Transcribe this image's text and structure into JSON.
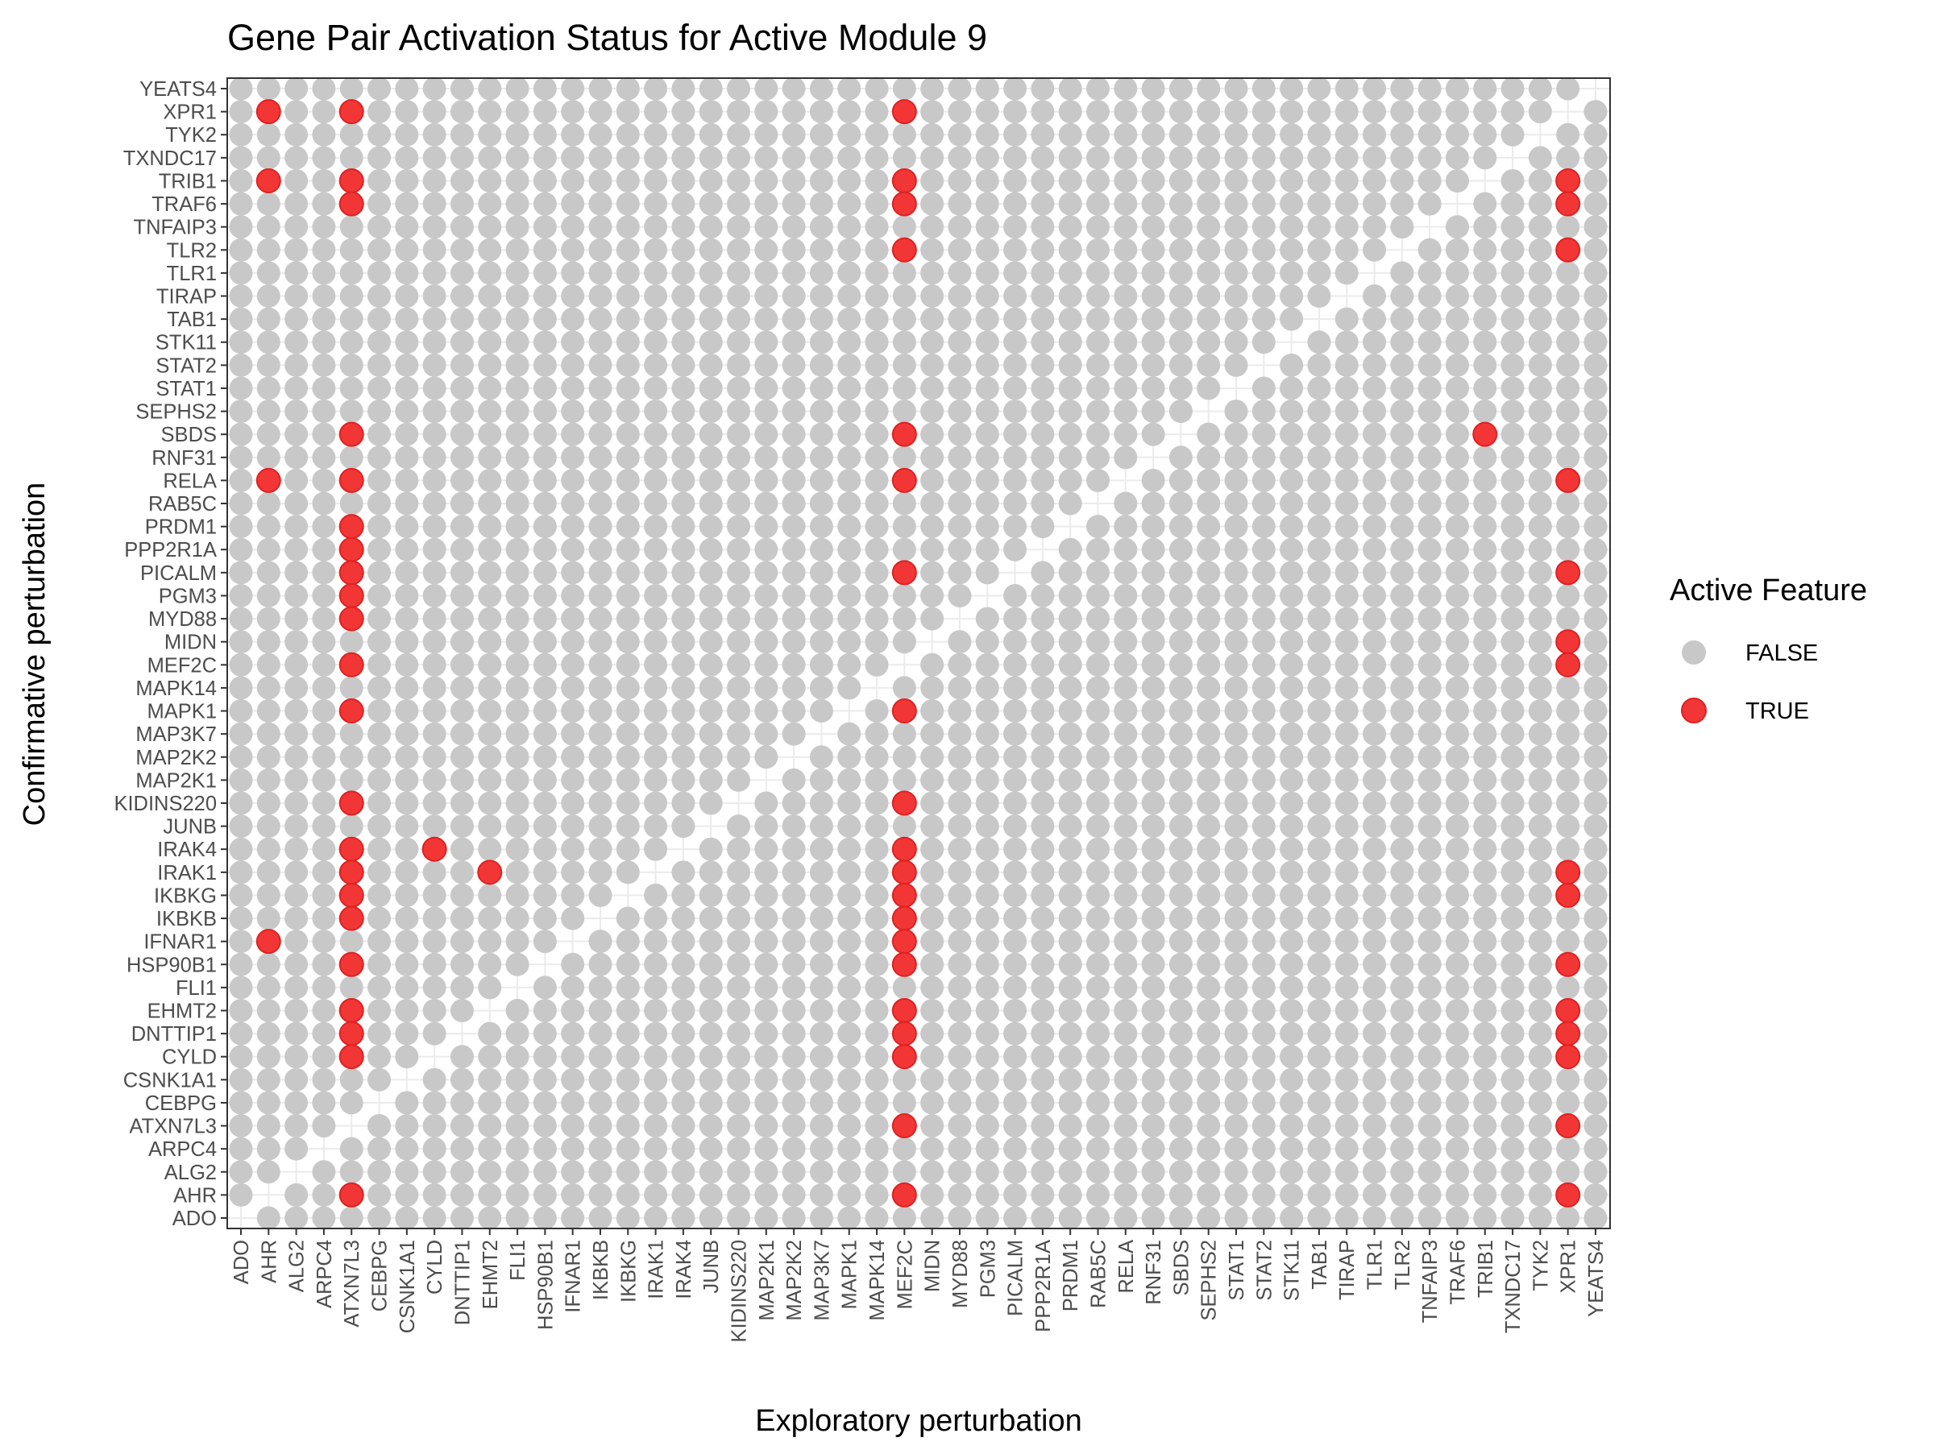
{
  "chart_data": {
    "type": "scatter",
    "title": "Gene Pair Activation Status for Active Module 9",
    "xlabel": "Exploratory perturbation",
    "ylabel": "Confirmative perturbation",
    "genes": [
      "ADO",
      "AHR",
      "ALG2",
      "ARPC4",
      "ATXN7L3",
      "CEBPG",
      "CSNK1A1",
      "CYLD",
      "DNTTIP1",
      "EHMT2",
      "FLI1",
      "HSP90B1",
      "IFNAR1",
      "IKBKB",
      "IKBKG",
      "IRAK1",
      "IRAK4",
      "JUNB",
      "KIDINS220",
      "MAP2K1",
      "MAP2K2",
      "MAP3K7",
      "MAPK1",
      "MAPK14",
      "MEF2C",
      "MIDN",
      "MYD88",
      "PGM3",
      "PICALM",
      "PPP2R1A",
      "PRDM1",
      "RAB5C",
      "RELA",
      "RNF31",
      "SBDS",
      "SEPHS2",
      "STAT1",
      "STAT2",
      "STK11",
      "TAB1",
      "TIRAP",
      "TLR1",
      "TLR2",
      "TNFAIP3",
      "TRAF6",
      "TRIB1",
      "TXNDC17",
      "TYK2",
      "XPR1",
      "YEATS4"
    ],
    "x_categories": [
      "ADO",
      "AHR",
      "ALG2",
      "ARPC4",
      "ATXN7L3",
      "CEBPG",
      "CSNK1A1",
      "CYLD",
      "DNTTIP1",
      "EHMT2",
      "FLI1",
      "HSP90B1",
      "IFNAR1",
      "IKBKB",
      "IKBKG",
      "IRAK1",
      "IRAK4",
      "JUNB",
      "KIDINS220",
      "MAP2K1",
      "MAP2K2",
      "MAP3K7",
      "MAPK1",
      "MAPK14",
      "MEF2C",
      "MIDN",
      "MYD88",
      "PGM3",
      "PICALM",
      "PPP2R1A",
      "PRDM1",
      "RAB5C",
      "RELA",
      "RNF31",
      "SBDS",
      "SEPHS2",
      "STAT1",
      "STAT2",
      "STK11",
      "TAB1",
      "TIRAP",
      "TLR1",
      "TLR2",
      "TNFAIP3",
      "TRAF6",
      "TRIB1",
      "TXNDC17",
      "TYK2",
      "XPR1",
      "YEATS4"
    ],
    "y_categories": [
      "ADO",
      "AHR",
      "ALG2",
      "ARPC4",
      "ATXN7L3",
      "CEBPG",
      "CSNK1A1",
      "CYLD",
      "DNTTIP1",
      "EHMT2",
      "FLI1",
      "HSP90B1",
      "IFNAR1",
      "IKBKB",
      "IKBKG",
      "IRAK1",
      "IRAK4",
      "JUNB",
      "KIDINS220",
      "MAP2K1",
      "MAP2K2",
      "MAP3K7",
      "MAPK1",
      "MAPK14",
      "MEF2C",
      "MIDN",
      "MYD88",
      "PGM3",
      "PICALM",
      "PPP2R1A",
      "PRDM1",
      "RAB5C",
      "RELA",
      "RNF31",
      "SBDS",
      "SEPHS2",
      "STAT1",
      "STAT2",
      "STK11",
      "TAB1",
      "TIRAP",
      "TLR1",
      "TLR2",
      "TNFAIP3",
      "TRAF6",
      "TRIB1",
      "TXNDC17",
      "TYK2",
      "XPR1",
      "YEATS4"
    ],
    "diagonal_omitted": true,
    "true_pairs": [
      {
        "x": "ATXN7L3",
        "y": "XPR1"
      },
      {
        "x": "ATXN7L3",
        "y": "TRIB1"
      },
      {
        "x": "ATXN7L3",
        "y": "TRAF6"
      },
      {
        "x": "ATXN7L3",
        "y": "SBDS"
      },
      {
        "x": "ATXN7L3",
        "y": "RELA"
      },
      {
        "x": "ATXN7L3",
        "y": "PRDM1"
      },
      {
        "x": "ATXN7L3",
        "y": "PPP2R1A"
      },
      {
        "x": "ATXN7L3",
        "y": "PICALM"
      },
      {
        "x": "ATXN7L3",
        "y": "PGM3"
      },
      {
        "x": "ATXN7L3",
        "y": "MYD88"
      },
      {
        "x": "ATXN7L3",
        "y": "MEF2C"
      },
      {
        "x": "ATXN7L3",
        "y": "MAPK1"
      },
      {
        "x": "ATXN7L3",
        "y": "KIDINS220"
      },
      {
        "x": "ATXN7L3",
        "y": "IRAK4"
      },
      {
        "x": "ATXN7L3",
        "y": "IRAK1"
      },
      {
        "x": "ATXN7L3",
        "y": "IKBKG"
      },
      {
        "x": "ATXN7L3",
        "y": "IKBKB"
      },
      {
        "x": "ATXN7L3",
        "y": "HSP90B1"
      },
      {
        "x": "ATXN7L3",
        "y": "EHMT2"
      },
      {
        "x": "ATXN7L3",
        "y": "DNTTIP1"
      },
      {
        "x": "ATXN7L3",
        "y": "CYLD"
      },
      {
        "x": "ATXN7L3",
        "y": "AHR"
      },
      {
        "x": "AHR",
        "y": "XPR1"
      },
      {
        "x": "AHR",
        "y": "TRIB1"
      },
      {
        "x": "AHR",
        "y": "RELA"
      },
      {
        "x": "AHR",
        "y": "IFNAR1"
      },
      {
        "x": "MEF2C",
        "y": "XPR1"
      },
      {
        "x": "MEF2C",
        "y": "TRIB1"
      },
      {
        "x": "MEF2C",
        "y": "TRAF6"
      },
      {
        "x": "MEF2C",
        "y": "TLR2"
      },
      {
        "x": "MEF2C",
        "y": "SBDS"
      },
      {
        "x": "MEF2C",
        "y": "RELA"
      },
      {
        "x": "MEF2C",
        "y": "PICALM"
      },
      {
        "x": "MEF2C",
        "y": "MAPK1"
      },
      {
        "x": "MEF2C",
        "y": "KIDINS220"
      },
      {
        "x": "MEF2C",
        "y": "IRAK4"
      },
      {
        "x": "MEF2C",
        "y": "IRAK1"
      },
      {
        "x": "MEF2C",
        "y": "IKBKG"
      },
      {
        "x": "MEF2C",
        "y": "IKBKB"
      },
      {
        "x": "MEF2C",
        "y": "IFNAR1"
      },
      {
        "x": "MEF2C",
        "y": "HSP90B1"
      },
      {
        "x": "MEF2C",
        "y": "EHMT2"
      },
      {
        "x": "MEF2C",
        "y": "DNTTIP1"
      },
      {
        "x": "MEF2C",
        "y": "CYLD"
      },
      {
        "x": "MEF2C",
        "y": "ATXN7L3"
      },
      {
        "x": "MEF2C",
        "y": "AHR"
      },
      {
        "x": "XPR1",
        "y": "TRIB1"
      },
      {
        "x": "XPR1",
        "y": "TRAF6"
      },
      {
        "x": "XPR1",
        "y": "TLR2"
      },
      {
        "x": "XPR1",
        "y": "RELA"
      },
      {
        "x": "XPR1",
        "y": "PICALM"
      },
      {
        "x": "XPR1",
        "y": "MIDN"
      },
      {
        "x": "XPR1",
        "y": "MEF2C"
      },
      {
        "x": "XPR1",
        "y": "IRAK1"
      },
      {
        "x": "XPR1",
        "y": "IKBKG"
      },
      {
        "x": "XPR1",
        "y": "HSP90B1"
      },
      {
        "x": "XPR1",
        "y": "EHMT2"
      },
      {
        "x": "XPR1",
        "y": "DNTTIP1"
      },
      {
        "x": "XPR1",
        "y": "CYLD"
      },
      {
        "x": "XPR1",
        "y": "ATXN7L3"
      },
      {
        "x": "XPR1",
        "y": "AHR"
      },
      {
        "x": "CYLD",
        "y": "IRAK4"
      },
      {
        "x": "EHMT2",
        "y": "IRAK1"
      },
      {
        "x": "TRIB1",
        "y": "SBDS"
      }
    ],
    "legend": {
      "title": "Active Feature",
      "placement": "right",
      "entries": [
        {
          "label": "FALSE",
          "color": "#c8c8c8"
        },
        {
          "label": "TRUE",
          "color": "#f23636"
        }
      ]
    },
    "grid": true
  },
  "colors": {
    "false_point": "#c8c8c8",
    "true_point": "#f23636",
    "true_stroke": "#e02020",
    "panel_border": "#333333",
    "grid": "#ebebeb"
  }
}
